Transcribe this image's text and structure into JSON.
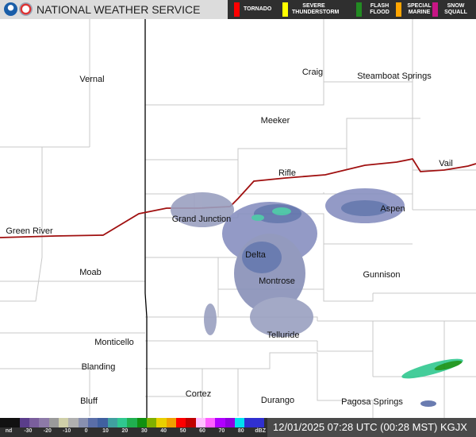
{
  "header": {
    "title": "NATIONAL WEATHER SERVICE",
    "logos": [
      "noaa-logo",
      "nws-logo"
    ]
  },
  "warnings": [
    {
      "label": "TORNADO",
      "color": "#ff0000"
    },
    {
      "label": "SEVERE THUNDERSTORM",
      "color": "#ffff00"
    },
    {
      "label": "FLASH FLOOD",
      "color": "#228b22"
    },
    {
      "label": "SPECIAL MARINE",
      "color": "#ffa500"
    },
    {
      "label": "SNOW SQUALL",
      "color": "#c71585"
    }
  ],
  "cities": [
    "Vernal",
    "Craig",
    "Steamboat Springs",
    "Meeker",
    "Rifle",
    "Vail",
    "Grand Junction",
    "Green River",
    "Aspen",
    "Moab",
    "Delta",
    "Montrose",
    "Gunnison",
    "Telluride",
    "Monticello",
    "Blanding",
    "Cortez",
    "Durango",
    "Bluff",
    "Pagosa Springs"
  ],
  "legend": {
    "ticks": [
      "nd",
      "-30",
      "-20",
      "-10",
      "0",
      "10",
      "20",
      "30",
      "40",
      "50",
      "60",
      "70",
      "80",
      "dBZ"
    ],
    "colors": [
      "#111111",
      "#111111",
      "#5a3d8a",
      "#7a5e9c",
      "#8d7aa8",
      "#9a9a9a",
      "#cfcfa8",
      "#b0b0b0",
      "#8890b0",
      "#5a6ea8",
      "#4060a0",
      "#40a0a0",
      "#30c890",
      "#20b050",
      "#109010",
      "#80b000",
      "#e8d000",
      "#f0a000",
      "#ff0000",
      "#c00000",
      "#ffc0ff",
      "#ff60ff",
      "#b000ff",
      "#9000e0",
      "#00e0f0",
      "#3030d0",
      "#3030d0"
    ]
  },
  "timestamp": "12/01/2025 07:28 UTC (00:28 MST)  KGJX",
  "colors": {
    "state_line": "#000000",
    "highway": "#a01010",
    "county_line": "#c8c8c8"
  }
}
